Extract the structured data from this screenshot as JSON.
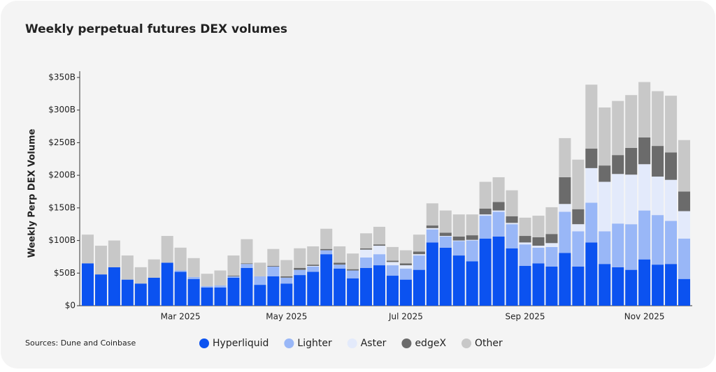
{
  "chart_data": {
    "type": "stacked_bar",
    "title": "Weekly perpetual futures DEX volumes",
    "y_label": "Weekly Perp DEX Volume",
    "source": "Sources: Dune and Coinbase",
    "categories": [
      null,
      null,
      null,
      null,
      null,
      null,
      null,
      "Mar 2025",
      null,
      null,
      null,
      null,
      null,
      null,
      null,
      "May 2025",
      null,
      null,
      null,
      null,
      null,
      null,
      null,
      null,
      "Jul 2025",
      null,
      null,
      null,
      null,
      null,
      null,
      null,
      null,
      "Sep 2025",
      null,
      null,
      null,
      null,
      null,
      null,
      null,
      null,
      "Nov 2025",
      null,
      null,
      null
    ],
    "ylim": [
      0,
      350
    ],
    "yticks": [
      {
        "value": 0,
        "label": "$0"
      },
      {
        "value": 50,
        "label": "$50B"
      },
      {
        "value": 100,
        "label": "$100B"
      },
      {
        "value": 150,
        "label": "$150B"
      },
      {
        "value": 200,
        "label": "$200B"
      },
      {
        "value": 250,
        "label": "$250B"
      },
      {
        "value": 300,
        "label": "$300B"
      },
      {
        "value": 350,
        "label": "$350B"
      }
    ],
    "series": [
      {
        "name": "Hyperliquid",
        "color": "#0b52f0",
        "values": [
          65,
          48,
          59,
          40,
          34,
          43,
          66,
          52,
          41,
          28,
          28,
          43,
          58,
          32,
          45,
          34,
          47,
          52,
          79,
          57,
          42,
          58,
          62,
          46,
          40,
          55,
          97,
          89,
          77,
          68,
          103,
          106,
          88,
          61,
          65,
          60,
          81,
          60,
          97,
          64,
          59,
          55,
          71,
          63,
          64,
          41
        ]
      },
      {
        "name": "Lighter",
        "color": "#99b7f7",
        "values": [
          0,
          0,
          0,
          0,
          0,
          0,
          0,
          2,
          3,
          2,
          3,
          2,
          6,
          13,
          15,
          9,
          8,
          8,
          6,
          6,
          12,
          16,
          17,
          16,
          17,
          22,
          20,
          17,
          22,
          32,
          35,
          38,
          37,
          33,
          24,
          30,
          63,
          54,
          61,
          50,
          67,
          70,
          75,
          76,
          66,
          62
        ]
      },
      {
        "name": "Aster",
        "color": "#e3eafb",
        "values": [
          0,
          0,
          0,
          0,
          0,
          0,
          0,
          0,
          0,
          0,
          0,
          0,
          0,
          0,
          0,
          0,
          0,
          1,
          0,
          0,
          0,
          12,
          13,
          5,
          5,
          2,
          2,
          1,
          1,
          1,
          2,
          2,
          2,
          3,
          3,
          6,
          12,
          11,
          53,
          76,
          76,
          76,
          71,
          59,
          63,
          42
        ]
      },
      {
        "name": "edgeX",
        "color": "#6b6b6b",
        "values": [
          0,
          0,
          0,
          0,
          0,
          0,
          0,
          0,
          0,
          0,
          0,
          1,
          1,
          0,
          1,
          2,
          3,
          2,
          2,
          3,
          2,
          2,
          2,
          2,
          3,
          4,
          4,
          5,
          6,
          7,
          9,
          13,
          10,
          10,
          13,
          14,
          41,
          23,
          30,
          25,
          29,
          41,
          41,
          47,
          42,
          30
        ]
      },
      {
        "name": "Other",
        "color": "#c8c8c8",
        "values": [
          44,
          44,
          41,
          37,
          25,
          28,
          41,
          35,
          29,
          19,
          23,
          31,
          37,
          21,
          26,
          25,
          30,
          28,
          31,
          25,
          24,
          23,
          27,
          21,
          20,
          26,
          34,
          34,
          34,
          32,
          41,
          38,
          40,
          28,
          33,
          41,
          60,
          76,
          98,
          89,
          83,
          81,
          85,
          84,
          87,
          79
        ]
      }
    ]
  }
}
